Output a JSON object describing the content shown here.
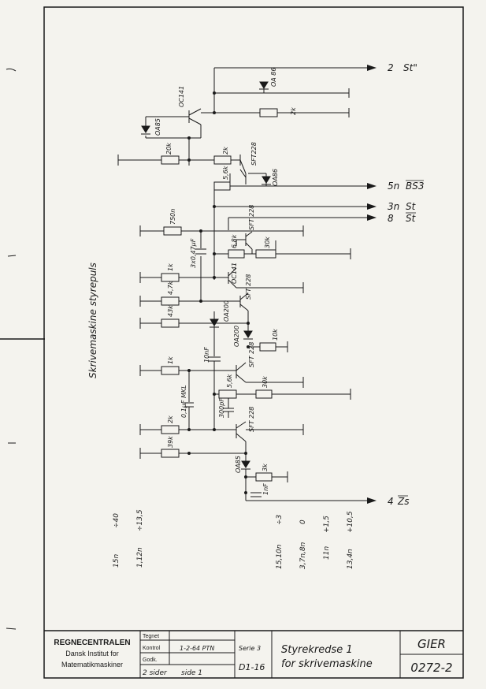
{
  "title_block": {
    "company_line1": "REGNECENTRALEN",
    "company_line2": "Dansk Institut for",
    "company_line3": "Matematikmaskiner",
    "tegnet_label": "Tegnet",
    "kontrol_label": "Kontrol",
    "kontrol_value": "1-2-64  PTN",
    "godk_label": "Godk.",
    "sider": "2 sider",
    "side": "side 1",
    "serie_label": "Serie 3",
    "serie_value": "D1-16",
    "title_line1": "Styrekredse 1",
    "title_line2": "for skrivemaskine",
    "project": "GIER",
    "drawing_no": "0272-2"
  },
  "side_title": "Skrivemaskine  styrepuls",
  "outputs": [
    {
      "pin": "2",
      "signal": "St\""
    },
    {
      "pin": "5n",
      "signal": "BS3"
    },
    {
      "pin": "3n",
      "signal": "St"
    },
    {
      "pin": "8",
      "signal": "St"
    },
    {
      "pin": "4",
      "signal": "Zs"
    }
  ],
  "components": {
    "oc141_top": "OC141",
    "oa86": "OA 86",
    "r2k_top": "2k",
    "oa85_top": "OA85",
    "r20k": "20k",
    "r2k_b": "2k",
    "sft228_top": "SFT228",
    "r56k_top": "5,6k",
    "oa86_b": "OA86",
    "r750": "750n",
    "sft228_b": "SFT 228",
    "r68k": "6,8k",
    "r30k_a": "30k",
    "c3x047": "3x0,47µF",
    "r1k_a": "1k",
    "oc141_mid": "OC141",
    "r47k": "4,7k",
    "sft228_c": "SFT 228",
    "r43k": "43k",
    "oa200_a": "OA200",
    "oa200_b": "OA200",
    "r10k": "10k",
    "c10nf": "10nF",
    "r1k_b": "1k",
    "sft228_d": "SFT 228",
    "c01uf": "0,1µF MKL",
    "r56k_b": "5,6k",
    "r30k_b": "30k",
    "c300pf": "300pF",
    "r2k_c": "2k",
    "sft228_e": "SFT 228",
    "r39k": "39k",
    "oa85_b": "OA85",
    "r3k": "3k",
    "c1nf": "1nF"
  },
  "supply_labels": {
    "l1a": "15n",
    "l1b": "÷40",
    "l2a": "1,12n",
    "l2b": "÷13,5",
    "l3a": "15,10n",
    "l3b": "÷3",
    "l4a": "3,7n,8n",
    "l4b": "0",
    "l5a": "11n",
    "l5b": "+1,5",
    "l6a": "13,4n",
    "l6b": "+10,5"
  }
}
